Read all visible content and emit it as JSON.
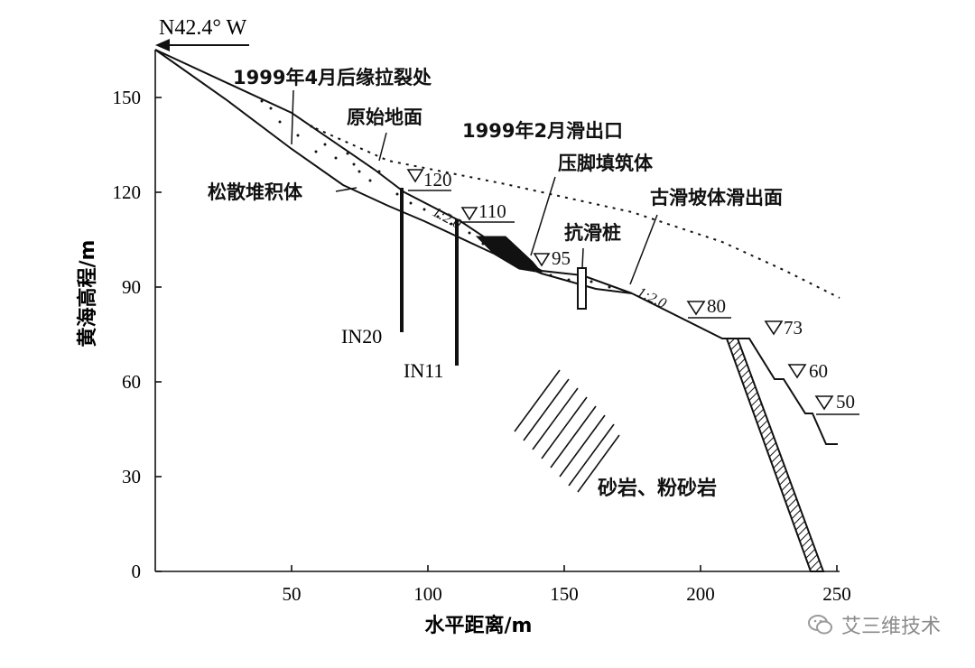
{
  "direction": "N42.4° W",
  "axes": {
    "xlabel": "水平距离/m",
    "ylabel": "黄海高程/m",
    "xticks": [
      "50",
      "100",
      "150",
      "200",
      "250"
    ],
    "yticks": [
      "0",
      "30",
      "60",
      "90",
      "120",
      "150"
    ]
  },
  "labels": {
    "crack": "1999年4月后缘拉裂处",
    "original_ground": "原始地面",
    "slip_exit_1999": "1999年2月滑出口",
    "toe_fill": "压脚填筑体",
    "loose_deposit": "松散堆积体",
    "ancient_slip_surface": "古滑坡体滑出面",
    "anti_slide_pile": "抗滑桩",
    "rock": "砂岩、粉砂岩",
    "slope_ratio_1": "1:2.0",
    "slope_ratio_2": "1:2.0",
    "boreholes": [
      "IN20",
      "IN11"
    ],
    "levels": [
      "120",
      "110",
      "95",
      "80",
      "73",
      "60",
      "50"
    ]
  },
  "watermark": "艾三维技术"
}
